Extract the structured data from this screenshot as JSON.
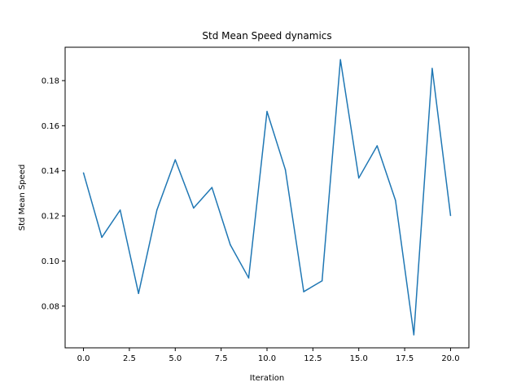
{
  "chart_data": {
    "type": "line",
    "title": "Std Mean Speed dynamics",
    "xlabel": "Iteration",
    "ylabel": "Std Mean Speed",
    "xlim": [
      -1.0,
      21.0
    ],
    "ylim": [
      0.0615,
      0.1948
    ],
    "x_ticks": [
      0.0,
      2.5,
      5.0,
      7.5,
      10.0,
      12.5,
      15.0,
      17.5,
      20.0
    ],
    "x_tick_labels": [
      "0.0",
      "2.5",
      "5.0",
      "7.5",
      "10.0",
      "12.5",
      "15.0",
      "17.5",
      "20.0"
    ],
    "y_ticks": [
      0.08,
      0.1,
      0.12,
      0.14,
      0.16,
      0.18
    ],
    "y_tick_labels": [
      "0.08",
      "0.10",
      "0.12",
      "0.14",
      "0.16",
      "0.18"
    ],
    "grid": false,
    "series": [
      {
        "color": "#1f77b4",
        "x": [
          0,
          1,
          2,
          3,
          4,
          5,
          6,
          7,
          8,
          9,
          10,
          11,
          12,
          13,
          14,
          15,
          16,
          17,
          18,
          19,
          20
        ],
        "values": [
          0.1391,
          0.1105,
          0.1226,
          0.0856,
          0.1226,
          0.1449,
          0.1235,
          0.1326,
          0.1072,
          0.0925,
          0.1663,
          0.1405,
          0.0864,
          0.0912,
          0.1893,
          0.1368,
          0.1511,
          0.1269,
          0.0673,
          0.1854,
          0.1202
        ]
      }
    ]
  }
}
